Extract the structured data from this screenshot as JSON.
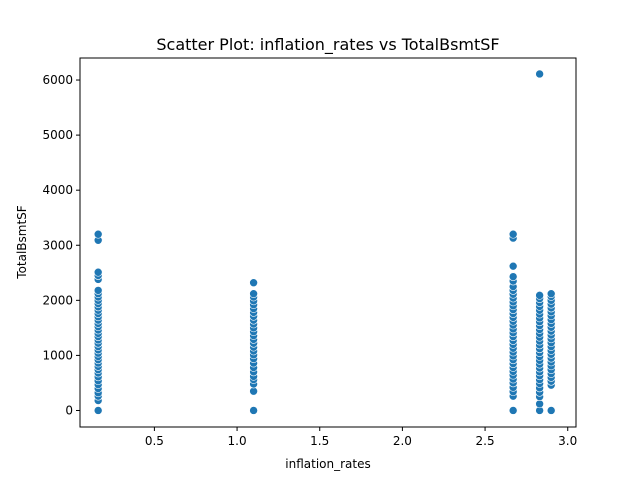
{
  "chart_data": {
    "type": "scatter",
    "title": "Scatter Plot: inflation_rates vs TotalBsmtSF",
    "xlabel": "inflation_rates",
    "ylabel": "TotalBsmtSF",
    "xlim": [
      0.05,
      3.05
    ],
    "ylim": [
      -300,
      6400
    ],
    "grid": false,
    "xticks": [
      0.5,
      1.0,
      1.5,
      2.0,
      2.5,
      3.0
    ],
    "xtick_labels": [
      "0.5",
      "1.0",
      "1.5",
      "2.0",
      "2.5",
      "3.0"
    ],
    "yticks": [
      0,
      1000,
      2000,
      3000,
      4000,
      5000,
      6000
    ],
    "ytick_labels": [
      "0",
      "1000",
      "2000",
      "3000",
      "4000",
      "5000",
      "6000"
    ],
    "color": "#1f77b4",
    "points": [
      {
        "x": 0.16,
        "y": 0
      },
      {
        "x": 0.16,
        "y": 180
      },
      {
        "x": 0.16,
        "y": 260
      },
      {
        "x": 0.16,
        "y": 320
      },
      {
        "x": 0.16,
        "y": 400
      },
      {
        "x": 0.16,
        "y": 470
      },
      {
        "x": 0.16,
        "y": 540
      },
      {
        "x": 0.16,
        "y": 610
      },
      {
        "x": 0.16,
        "y": 680
      },
      {
        "x": 0.16,
        "y": 740
      },
      {
        "x": 0.16,
        "y": 800
      },
      {
        "x": 0.16,
        "y": 860
      },
      {
        "x": 0.16,
        "y": 920
      },
      {
        "x": 0.16,
        "y": 980
      },
      {
        "x": 0.16,
        "y": 1040
      },
      {
        "x": 0.16,
        "y": 1100
      },
      {
        "x": 0.16,
        "y": 1160
      },
      {
        "x": 0.16,
        "y": 1220
      },
      {
        "x": 0.16,
        "y": 1280
      },
      {
        "x": 0.16,
        "y": 1340
      },
      {
        "x": 0.16,
        "y": 1400
      },
      {
        "x": 0.16,
        "y": 1460
      },
      {
        "x": 0.16,
        "y": 1520
      },
      {
        "x": 0.16,
        "y": 1580
      },
      {
        "x": 0.16,
        "y": 1640
      },
      {
        "x": 0.16,
        "y": 1700
      },
      {
        "x": 0.16,
        "y": 1760
      },
      {
        "x": 0.16,
        "y": 1820
      },
      {
        "x": 0.16,
        "y": 1880
      },
      {
        "x": 0.16,
        "y": 1940
      },
      {
        "x": 0.16,
        "y": 2000
      },
      {
        "x": 0.16,
        "y": 2060
      },
      {
        "x": 0.16,
        "y": 2120
      },
      {
        "x": 0.16,
        "y": 2180
      },
      {
        "x": 0.16,
        "y": 2380
      },
      {
        "x": 0.16,
        "y": 2450
      },
      {
        "x": 0.16,
        "y": 2510
      },
      {
        "x": 0.16,
        "y": 3090
      },
      {
        "x": 0.16,
        "y": 3200
      },
      {
        "x": 1.1,
        "y": 0
      },
      {
        "x": 1.1,
        "y": 350
      },
      {
        "x": 1.1,
        "y": 480
      },
      {
        "x": 1.1,
        "y": 560
      },
      {
        "x": 1.1,
        "y": 620
      },
      {
        "x": 1.1,
        "y": 700
      },
      {
        "x": 1.1,
        "y": 780
      },
      {
        "x": 1.1,
        "y": 860
      },
      {
        "x": 1.1,
        "y": 940
      },
      {
        "x": 1.1,
        "y": 1010
      },
      {
        "x": 1.1,
        "y": 1080
      },
      {
        "x": 1.1,
        "y": 1150
      },
      {
        "x": 1.1,
        "y": 1220
      },
      {
        "x": 1.1,
        "y": 1290
      },
      {
        "x": 1.1,
        "y": 1360
      },
      {
        "x": 1.1,
        "y": 1430
      },
      {
        "x": 1.1,
        "y": 1500
      },
      {
        "x": 1.1,
        "y": 1570
      },
      {
        "x": 1.1,
        "y": 1640
      },
      {
        "x": 1.1,
        "y": 1710
      },
      {
        "x": 1.1,
        "y": 1780
      },
      {
        "x": 1.1,
        "y": 1850
      },
      {
        "x": 1.1,
        "y": 1920
      },
      {
        "x": 1.1,
        "y": 1990
      },
      {
        "x": 1.1,
        "y": 2060
      },
      {
        "x": 1.1,
        "y": 2120
      },
      {
        "x": 1.1,
        "y": 2320
      },
      {
        "x": 2.67,
        "y": 0
      },
      {
        "x": 2.67,
        "y": 260
      },
      {
        "x": 2.67,
        "y": 340
      },
      {
        "x": 2.67,
        "y": 420
      },
      {
        "x": 2.67,
        "y": 500
      },
      {
        "x": 2.67,
        "y": 570
      },
      {
        "x": 2.67,
        "y": 640
      },
      {
        "x": 2.67,
        "y": 710
      },
      {
        "x": 2.67,
        "y": 780
      },
      {
        "x": 2.67,
        "y": 850
      },
      {
        "x": 2.67,
        "y": 920
      },
      {
        "x": 2.67,
        "y": 990
      },
      {
        "x": 2.67,
        "y": 1060
      },
      {
        "x": 2.67,
        "y": 1130
      },
      {
        "x": 2.67,
        "y": 1200
      },
      {
        "x": 2.67,
        "y": 1270
      },
      {
        "x": 2.67,
        "y": 1340
      },
      {
        "x": 2.67,
        "y": 1410
      },
      {
        "x": 2.67,
        "y": 1480
      },
      {
        "x": 2.67,
        "y": 1550
      },
      {
        "x": 2.67,
        "y": 1620
      },
      {
        "x": 2.67,
        "y": 1690
      },
      {
        "x": 2.67,
        "y": 1760
      },
      {
        "x": 2.67,
        "y": 1830
      },
      {
        "x": 2.67,
        "y": 1900
      },
      {
        "x": 2.67,
        "y": 1970
      },
      {
        "x": 2.67,
        "y": 2040
      },
      {
        "x": 2.67,
        "y": 2110
      },
      {
        "x": 2.67,
        "y": 2180
      },
      {
        "x": 2.67,
        "y": 2250
      },
      {
        "x": 2.67,
        "y": 2350
      },
      {
        "x": 2.67,
        "y": 2430
      },
      {
        "x": 2.67,
        "y": 2620
      },
      {
        "x": 2.67,
        "y": 3130
      },
      {
        "x": 2.67,
        "y": 3200
      },
      {
        "x": 2.83,
        "y": 0
      },
      {
        "x": 2.83,
        "y": 120
      },
      {
        "x": 2.83,
        "y": 250
      },
      {
        "x": 2.83,
        "y": 330
      },
      {
        "x": 2.83,
        "y": 410
      },
      {
        "x": 2.83,
        "y": 490
      },
      {
        "x": 2.83,
        "y": 560
      },
      {
        "x": 2.83,
        "y": 630
      },
      {
        "x": 2.83,
        "y": 700
      },
      {
        "x": 2.83,
        "y": 770
      },
      {
        "x": 2.83,
        "y": 840
      },
      {
        "x": 2.83,
        "y": 910
      },
      {
        "x": 2.83,
        "y": 980
      },
      {
        "x": 2.83,
        "y": 1050
      },
      {
        "x": 2.83,
        "y": 1120
      },
      {
        "x": 2.83,
        "y": 1190
      },
      {
        "x": 2.83,
        "y": 1260
      },
      {
        "x": 2.83,
        "y": 1330
      },
      {
        "x": 2.83,
        "y": 1400
      },
      {
        "x": 2.83,
        "y": 1470
      },
      {
        "x": 2.83,
        "y": 1540
      },
      {
        "x": 2.83,
        "y": 1610
      },
      {
        "x": 2.83,
        "y": 1680
      },
      {
        "x": 2.83,
        "y": 1750
      },
      {
        "x": 2.83,
        "y": 1820
      },
      {
        "x": 2.83,
        "y": 1890
      },
      {
        "x": 2.83,
        "y": 1960
      },
      {
        "x": 2.83,
        "y": 2030
      },
      {
        "x": 2.83,
        "y": 2090
      },
      {
        "x": 2.83,
        "y": 6110
      },
      {
        "x": 2.9,
        "y": 0
      },
      {
        "x": 2.9,
        "y": 460
      },
      {
        "x": 2.9,
        "y": 530
      },
      {
        "x": 2.9,
        "y": 600
      },
      {
        "x": 2.9,
        "y": 670
      },
      {
        "x": 2.9,
        "y": 740
      },
      {
        "x": 2.9,
        "y": 810
      },
      {
        "x": 2.9,
        "y": 880
      },
      {
        "x": 2.9,
        "y": 950
      },
      {
        "x": 2.9,
        "y": 1020
      },
      {
        "x": 2.9,
        "y": 1090
      },
      {
        "x": 2.9,
        "y": 1160
      },
      {
        "x": 2.9,
        "y": 1230
      },
      {
        "x": 2.9,
        "y": 1300
      },
      {
        "x": 2.9,
        "y": 1370
      },
      {
        "x": 2.9,
        "y": 1440
      },
      {
        "x": 2.9,
        "y": 1510
      },
      {
        "x": 2.9,
        "y": 1580
      },
      {
        "x": 2.9,
        "y": 1650
      },
      {
        "x": 2.9,
        "y": 1720
      },
      {
        "x": 2.9,
        "y": 1790
      },
      {
        "x": 2.9,
        "y": 1860
      },
      {
        "x": 2.9,
        "y": 1930
      },
      {
        "x": 2.9,
        "y": 2000
      },
      {
        "x": 2.9,
        "y": 2070
      },
      {
        "x": 2.9,
        "y": 2120
      }
    ]
  }
}
